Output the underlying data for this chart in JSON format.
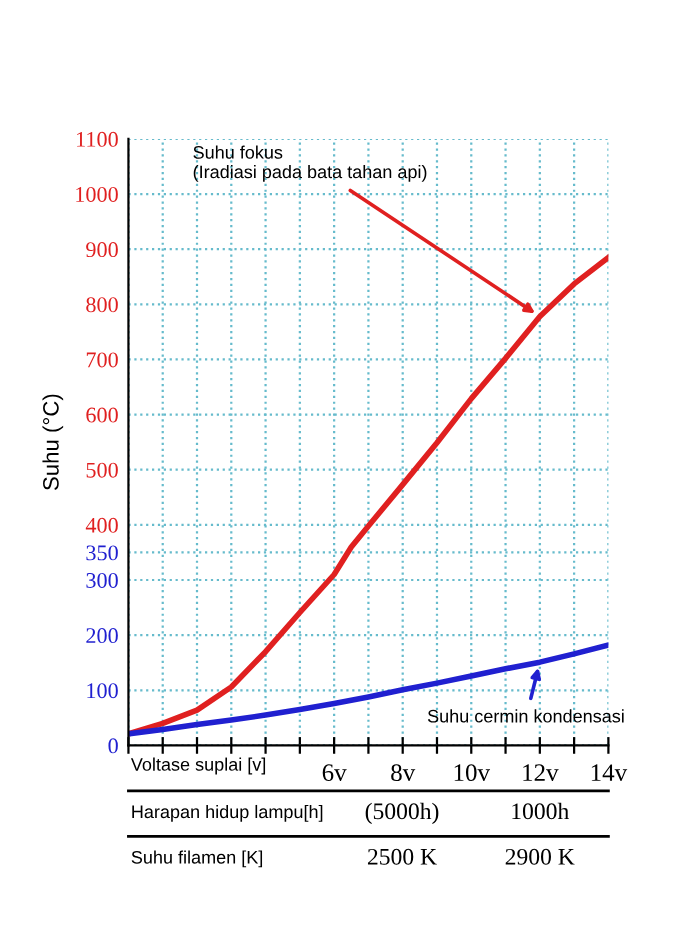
{
  "chart_data": {
    "type": "line",
    "xlabel": "Voltase suplai [v]",
    "ylabel": "Suhu (°C)",
    "x": [
      0,
      1,
      2,
      3,
      4,
      5,
      6,
      6.5,
      7,
      8,
      9,
      10,
      11,
      12,
      13,
      14
    ],
    "series": [
      {
        "color": "#e02020",
        "values": [
          21,
          40,
          64,
          106,
          170,
          241,
          310,
          360,
          398,
          473,
          549,
          629,
          702,
          778,
          837,
          885
        ]
      },
      {
        "color": "#2020d0",
        "values": [
          21,
          29,
          38,
          46,
          55,
          65,
          76,
          82,
          88,
          101,
          113,
          126,
          139,
          151,
          166,
          182
        ]
      }
    ],
    "xlim": [
      0,
      14
    ],
    "xticks": [
      {
        "value": 0,
        "label": null
      },
      {
        "value": 1,
        "label": null
      },
      {
        "value": 2,
        "label": null
      },
      {
        "value": 3,
        "label": null
      },
      {
        "value": 4,
        "label": null
      },
      {
        "value": 5,
        "label": null
      },
      {
        "value": 6,
        "label": "6v"
      },
      {
        "value": 7,
        "label": null
      },
      {
        "value": 8,
        "label": "8v"
      },
      {
        "value": 9,
        "label": null
      },
      {
        "value": 10,
        "label": "10v"
      },
      {
        "value": 11,
        "label": null
      },
      {
        "value": 12,
        "label": "12v"
      },
      {
        "value": 13,
        "label": null
      },
      {
        "value": 14,
        "label": "14v"
      }
    ],
    "ylim": [
      0,
      1100
    ],
    "yticks": [
      0,
      100,
      200,
      300,
      350,
      400,
      500,
      600,
      700,
      800,
      900,
      1000,
      1100
    ],
    "grid": true,
    "marker": "none",
    "line_style": "solid",
    "legend": false,
    "annotations": [
      {
        "text": "Suhu fokus\n(Iradiasi pada bata tahan api)",
        "x": 12,
        "y": 778
      },
      {
        "text": "Suhu cermin kondensasi",
        "x": 12,
        "y": 151
      },
      "Harapan hidup lampu[h]",
      "(5000h)",
      "1000h",
      "Suhu filamen [K]",
      "2500 K",
      "2900 K"
    ]
  }
}
